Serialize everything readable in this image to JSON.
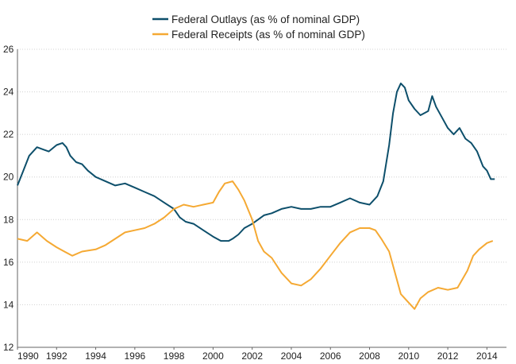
{
  "chart_data": {
    "type": "line",
    "title": "",
    "xlabel": "",
    "ylabel": "",
    "xlim": [
      1990,
      2015
    ],
    "ylim": [
      12,
      26
    ],
    "x_ticks": [
      "1990",
      "1992",
      "1994",
      "1996",
      "1998",
      "2000",
      "2002",
      "2004",
      "2006",
      "2008",
      "2010",
      "2012",
      "2014"
    ],
    "y_ticks": [
      "12",
      "14",
      "16",
      "18",
      "20",
      "22",
      "24",
      "26"
    ],
    "grid": "horizontal",
    "legend_position": "top-center",
    "series": [
      {
        "name": "Federal Outlays (as % of nominal GDP)",
        "color": "#0d4f6b",
        "x": [
          1990,
          1990.3,
          1990.6,
          1991,
          1991.3,
          1991.6,
          1992,
          1992.3,
          1992.5,
          1992.7,
          1993,
          1993.3,
          1993.6,
          1994,
          1994.5,
          1995,
          1995.5,
          1996,
          1996.5,
          1997,
          1997.5,
          1998,
          1998.3,
          1998.6,
          1999,
          1999.5,
          2000,
          2000.4,
          2000.8,
          2001,
          2001.3,
          2001.6,
          2002,
          2002.3,
          2002.6,
          2003,
          2003.5,
          2004,
          2004.5,
          2005,
          2005.5,
          2006,
          2006.5,
          2007,
          2007.5,
          2008,
          2008.4,
          2008.7,
          2009,
          2009.2,
          2009.4,
          2009.6,
          2009.8,
          2010,
          2010.3,
          2010.6,
          2011,
          2011.2,
          2011.4,
          2011.7,
          2012,
          2012.3,
          2012.6,
          2012.9,
          2013.2,
          2013.5,
          2013.8,
          2014,
          2014.2,
          2014.4
        ],
        "values": [
          19.6,
          20.3,
          21.0,
          21.4,
          21.3,
          21.2,
          21.5,
          21.6,
          21.4,
          21.0,
          20.7,
          20.6,
          20.3,
          20.0,
          19.8,
          19.6,
          19.7,
          19.5,
          19.3,
          19.1,
          18.8,
          18.5,
          18.1,
          17.9,
          17.8,
          17.5,
          17.2,
          17.0,
          17.0,
          17.1,
          17.3,
          17.6,
          17.8,
          18.0,
          18.2,
          18.3,
          18.5,
          18.6,
          18.5,
          18.5,
          18.6,
          18.6,
          18.8,
          19.0,
          18.8,
          18.7,
          19.1,
          19.8,
          21.5,
          23.0,
          24.0,
          24.4,
          24.2,
          23.6,
          23.2,
          22.9,
          23.1,
          23.8,
          23.3,
          22.8,
          22.3,
          22.0,
          22.3,
          21.8,
          21.6,
          21.2,
          20.5,
          20.3,
          19.9,
          19.9
        ]
      },
      {
        "name": "Federal Receipts (as % of nominal GDP)",
        "color": "#f5a933",
        "x": [
          1990,
          1990.5,
          1991,
          1991.5,
          1992,
          1992.4,
          1992.8,
          1993.3,
          1994,
          1994.5,
          1995,
          1995.5,
          1996,
          1996.5,
          1997,
          1997.5,
          1998,
          1998.5,
          1999,
          1999.5,
          2000,
          2000.3,
          2000.6,
          2001,
          2001.3,
          2001.6,
          2002,
          2002.3,
          2002.6,
          2003,
          2003.5,
          2004,
          2004.5,
          2005,
          2005.5,
          2006,
          2006.5,
          2007,
          2007.5,
          2008,
          2008.3,
          2008.6,
          2009,
          2009.3,
          2009.6,
          2010,
          2010.3,
          2010.6,
          2011,
          2011.5,
          2012,
          2012.5,
          2013,
          2013.3,
          2013.6,
          2014,
          2014.3
        ],
        "values": [
          17.1,
          17.0,
          17.4,
          17.0,
          16.7,
          16.5,
          16.3,
          16.5,
          16.6,
          16.8,
          17.1,
          17.4,
          17.5,
          17.6,
          17.8,
          18.1,
          18.5,
          18.7,
          18.6,
          18.7,
          18.8,
          19.3,
          19.7,
          19.8,
          19.4,
          18.9,
          18.0,
          17.0,
          16.5,
          16.2,
          15.5,
          15.0,
          14.9,
          15.2,
          15.7,
          16.3,
          16.9,
          17.4,
          17.6,
          17.6,
          17.5,
          17.1,
          16.5,
          15.5,
          14.5,
          14.1,
          13.8,
          14.3,
          14.6,
          14.8,
          14.7,
          14.8,
          15.6,
          16.3,
          16.6,
          16.9,
          17.0
        ]
      }
    ]
  }
}
